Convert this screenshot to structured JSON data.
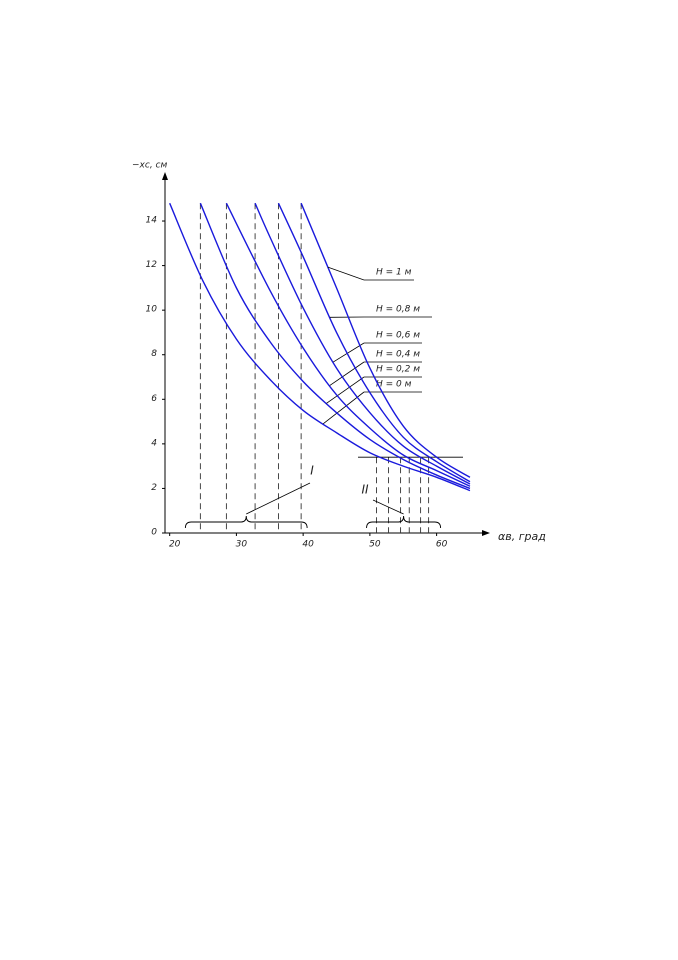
{
  "chart_data": {
    "type": "line",
    "ylabel": "−xс, см",
    "xlabel": "αв, град",
    "xlim": [
      19.3,
      68
    ],
    "ylim": [
      0,
      16.2
    ],
    "xticks": [
      20,
      30,
      40,
      50,
      60
    ],
    "yticks": [
      0,
      2,
      4,
      6,
      8,
      10,
      12,
      14
    ],
    "series": [
      {
        "name": "H = 0 м",
        "color": "#1a1adc",
        "x": [
          20,
          25,
          30,
          35,
          40,
          45,
          50,
          55,
          60,
          65
        ],
        "values": [
          14.8,
          11.3,
          8.7,
          6.9,
          5.5,
          4.5,
          3.6,
          3.0,
          2.5,
          1.9
        ]
      },
      {
        "name": "H = 0,2 м",
        "color": "#1a1adc",
        "x": [
          24.6,
          30,
          35,
          40,
          45,
          50,
          55,
          60,
          65
        ],
        "values": [
          14.8,
          11.0,
          8.6,
          6.8,
          5.4,
          4.2,
          3.3,
          2.6,
          2.0
        ]
      },
      {
        "name": "H = 0,4 м",
        "color": "#1a1adc",
        "x": [
          28.5,
          35,
          40,
          45,
          50,
          55,
          60,
          65
        ],
        "values": [
          14.8,
          10.9,
          8.3,
          6.2,
          4.7,
          3.5,
          2.8,
          2.1
        ]
      },
      {
        "name": "H = 0,6 м",
        "color": "#1a1adc",
        "x": [
          32.8,
          35,
          40,
          45,
          50,
          55,
          60,
          65
        ],
        "values": [
          14.8,
          13.3,
          10.1,
          7.4,
          5.4,
          3.9,
          3.0,
          2.2
        ]
      },
      {
        "name": "H = 0,8 м",
        "color": "#1a1adc",
        "x": [
          36.3,
          40,
          45,
          50,
          55,
          60,
          65
        ],
        "values": [
          14.8,
          12.4,
          9.0,
          6.3,
          4.3,
          3.2,
          2.3
        ]
      },
      {
        "name": "H = 1 м",
        "color": "#1a1adc",
        "x": [
          39.7,
          45,
          50,
          55,
          60,
          65
        ],
        "values": [
          14.8,
          11.0,
          7.4,
          4.8,
          3.4,
          2.5
        ]
      }
    ],
    "groups": [
      {
        "label": "I",
        "dashed_x": [
          24.6,
          28.5,
          32.8,
          36.3,
          39.7
        ]
      },
      {
        "label": "II",
        "dashed_x": [
          51.0,
          52.8,
          54.6,
          55.9,
          57.6,
          58.8
        ]
      }
    ],
    "hline": 3.4
  }
}
